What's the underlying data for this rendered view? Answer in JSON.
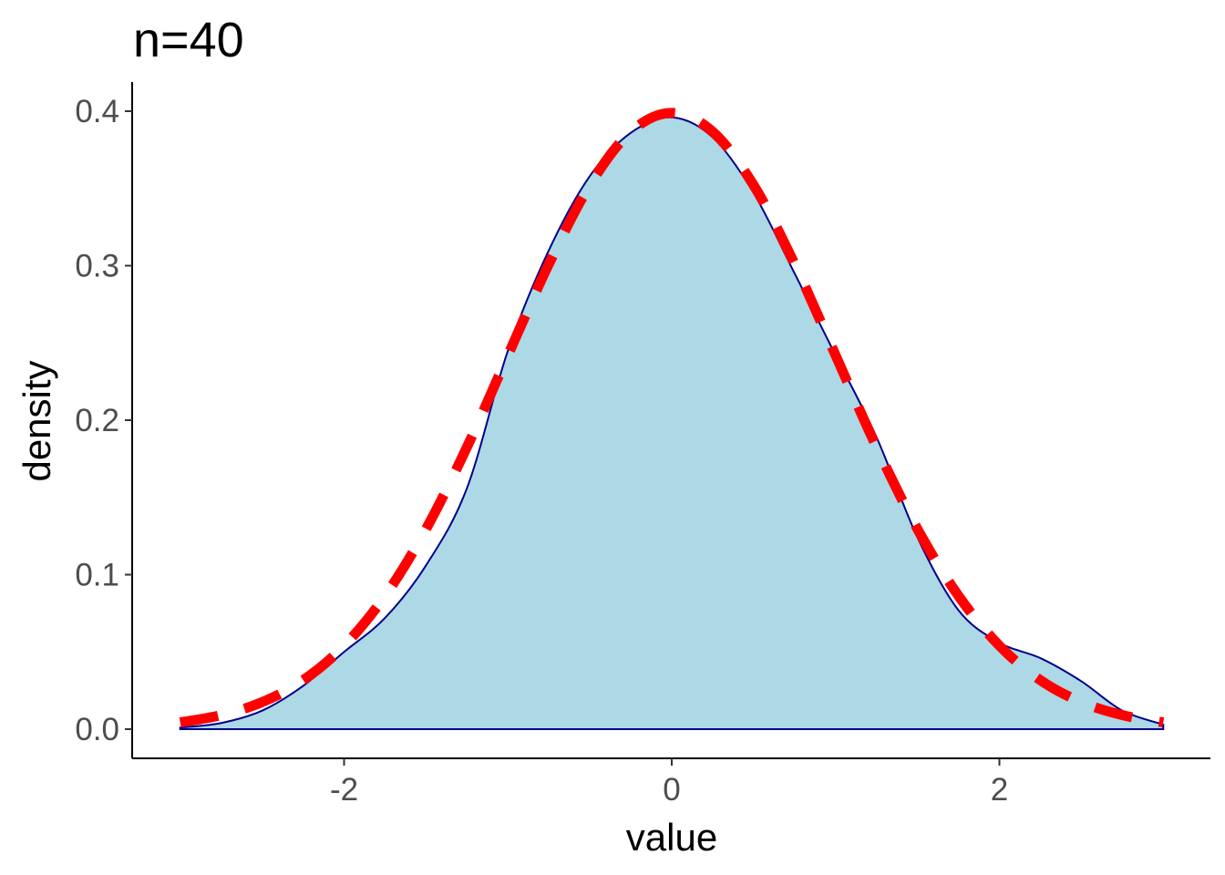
{
  "chart_data": {
    "type": "area",
    "title": "n=40",
    "xlabel": "value",
    "ylabel": "density",
    "xlim": [
      -3.22,
      3.3
    ],
    "ylim": [
      -0.019,
      0.418
    ],
    "xticks": [
      -2,
      0,
      2
    ],
    "xtick_labels": [
      "-2",
      "0",
      "2"
    ],
    "yticks": [
      0.0,
      0.1,
      0.2,
      0.3,
      0.4
    ],
    "ytick_labels": [
      "0.0",
      "0.1",
      "0.2",
      "0.3",
      "0.4"
    ],
    "grid": false,
    "x": [
      -3,
      -2.75,
      -2.5,
      -2.25,
      -2,
      -1.75,
      -1.5,
      -1.25,
      -1,
      -0.75,
      -0.5,
      -0.25,
      0,
      0.25,
      0.5,
      0.75,
      1,
      1.25,
      1.5,
      1.75,
      2,
      2.25,
      2.5,
      2.75,
      3
    ],
    "series": [
      {
        "kind": "density-area",
        "fill": "#ADD8E6",
        "line": "#00008B",
        "values": [
          0.001,
          0.004,
          0.012,
          0.028,
          0.05,
          0.072,
          0.106,
          0.156,
          0.245,
          0.31,
          0.358,
          0.386,
          0.396,
          0.383,
          0.347,
          0.295,
          0.242,
          0.189,
          0.124,
          0.077,
          0.056,
          0.046,
          0.031,
          0.012,
          0.003
        ]
      },
      {
        "kind": "dashed-line",
        "color": "#FF0000",
        "values": [
          0.0044,
          0.0091,
          0.0175,
          0.0317,
          0.054,
          0.0863,
          0.1295,
          0.1826,
          0.242,
          0.3011,
          0.3521,
          0.3867,
          0.3989,
          0.3867,
          0.3521,
          0.3011,
          0.242,
          0.1826,
          0.1295,
          0.0863,
          0.054,
          0.0317,
          0.0175,
          0.0091,
          0.0044
        ]
      }
    ]
  }
}
